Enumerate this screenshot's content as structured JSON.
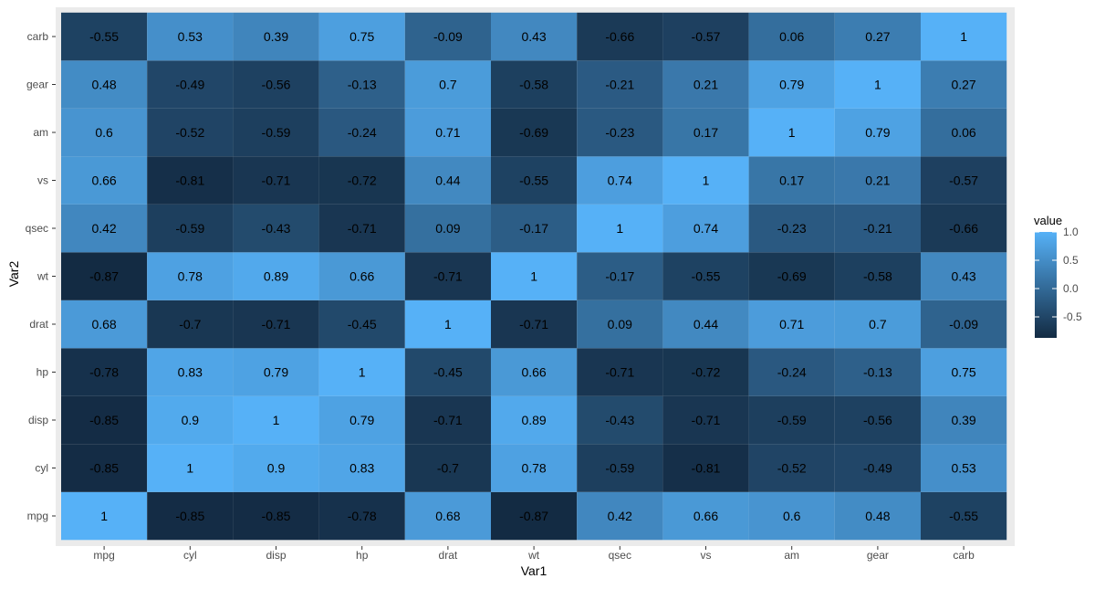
{
  "chart_data": {
    "type": "heatmap",
    "title": "",
    "xlabel": "Var1",
    "ylabel": "Var2",
    "x_categories": [
      "mpg",
      "cyl",
      "disp",
      "hp",
      "drat",
      "wt",
      "qsec",
      "vs",
      "am",
      "gear",
      "carb"
    ],
    "y_categories": [
      "mpg",
      "cyl",
      "disp",
      "hp",
      "drat",
      "wt",
      "qsec",
      "vs",
      "am",
      "gear",
      "carb"
    ],
    "values": [
      [
        "1",
        "-0.85",
        "-0.85",
        "-0.78",
        "0.68",
        "-0.87",
        "0.42",
        "0.66",
        "0.6",
        "0.48",
        "-0.55"
      ],
      [
        "-0.85",
        "1",
        "0.9",
        "0.83",
        "-0.7",
        "0.78",
        "-0.59",
        "-0.81",
        "-0.52",
        "-0.49",
        "0.53"
      ],
      [
        "-0.85",
        "0.9",
        "1",
        "0.79",
        "-0.71",
        "0.89",
        "-0.43",
        "-0.71",
        "-0.59",
        "-0.56",
        "0.39"
      ],
      [
        "-0.78",
        "0.83",
        "0.79",
        "1",
        "-0.45",
        "0.66",
        "-0.71",
        "-0.72",
        "-0.24",
        "-0.13",
        "0.75"
      ],
      [
        "0.68",
        "-0.7",
        "-0.71",
        "-0.45",
        "1",
        "-0.71",
        "0.09",
        "0.44",
        "0.71",
        "0.7",
        "-0.09"
      ],
      [
        "-0.87",
        "0.78",
        "0.89",
        "0.66",
        "-0.71",
        "1",
        "-0.17",
        "-0.55",
        "-0.69",
        "-0.58",
        "0.43"
      ],
      [
        "0.42",
        "-0.59",
        "-0.43",
        "-0.71",
        "0.09",
        "-0.17",
        "1",
        "0.74",
        "-0.23",
        "-0.21",
        "-0.66"
      ],
      [
        "0.66",
        "-0.81",
        "-0.71",
        "-0.72",
        "0.44",
        "-0.55",
        "0.74",
        "1",
        "0.17",
        "0.21",
        "-0.57"
      ],
      [
        "0.6",
        "-0.52",
        "-0.59",
        "-0.24",
        "0.71",
        "-0.69",
        "-0.23",
        "0.17",
        "1",
        "0.79",
        "0.06"
      ],
      [
        "0.48",
        "-0.49",
        "-0.56",
        "-0.13",
        "0.7",
        "-0.58",
        "-0.21",
        "0.21",
        "0.79",
        "1",
        "0.27"
      ],
      [
        "-0.55",
        "0.53",
        "0.39",
        "0.75",
        "-0.09",
        "0.43",
        "-0.66",
        "-0.57",
        "0.06",
        "0.27",
        "1"
      ]
    ],
    "legend": {
      "title": "value",
      "placement": "right",
      "ticks": [
        "1.0",
        "0.5",
        "0.0",
        "-0.5"
      ],
      "range": [
        -0.87,
        1
      ]
    },
    "colors": {
      "low": "#132B43",
      "high": "#56B1F7",
      "panel_bg": "#EBEBEB",
      "grid": "#FFFFFF",
      "text": "#000000",
      "axis_text": "#4D4D4D"
    },
    "grid": true
  }
}
